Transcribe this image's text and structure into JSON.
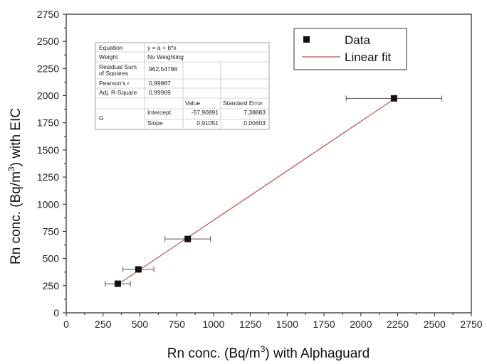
{
  "chart_data": {
    "type": "scatter",
    "xlabel": {
      "pre": "Rn conc. (Bq/m",
      "sup": "3",
      "post": ") with Alphaguard"
    },
    "ylabel": {
      "pre": "Rn conc. (Bq/m",
      "sup": "3",
      "post": ") with EIC"
    },
    "xlim": [
      0,
      2750
    ],
    "ylim": [
      0,
      2750
    ],
    "xticks": [
      "0",
      "250",
      "500",
      "750",
      "1000",
      "1250",
      "1500",
      "1750",
      "2000",
      "2250",
      "2500",
      "2750"
    ],
    "yticks": [
      "0",
      "250",
      "500",
      "750",
      "1000",
      "1250",
      "1500",
      "1750",
      "2000",
      "2250",
      "2500",
      "2750"
    ],
    "grid": false,
    "legend_position": "top-right",
    "series": [
      {
        "name": "Data",
        "color": "#111111",
        "marker": "square",
        "points": [
          {
            "x": 350,
            "y": 268,
            "xerr": 85
          },
          {
            "x": 490,
            "y": 400,
            "xerr": 105
          },
          {
            "x": 825,
            "y": 680,
            "xerr": 155
          },
          {
            "x": 2225,
            "y": 1975,
            "xerr": 325
          }
        ]
      },
      {
        "name": "Linear fit",
        "color": "#c0504d",
        "type": "line",
        "x": [
          350,
          2225
        ],
        "y": [
          260.8,
          1968.0
        ]
      }
    ],
    "fit_table": {
      "rows": [
        {
          "label": "Equation",
          "value": "y = a + b*x"
        },
        {
          "label": "Weight",
          "value": "No Weighting"
        },
        {
          "label": [
            "Residual Sum",
            "of Squares"
          ],
          "value": "962,54788"
        },
        {
          "label": "Pearson's r",
          "value": "0,99987"
        },
        {
          "label": "Adj. R-Square",
          "value": "0,99969"
        }
      ],
      "header": {
        "value": "Value",
        "error": "Standard Error"
      },
      "group": "G",
      "params": [
        {
          "name": "Intercept",
          "value": "-57,90891",
          "error": "7,38883"
        },
        {
          "name": "Slope",
          "value": "0,91051",
          "error": "0,00603"
        }
      ]
    }
  }
}
